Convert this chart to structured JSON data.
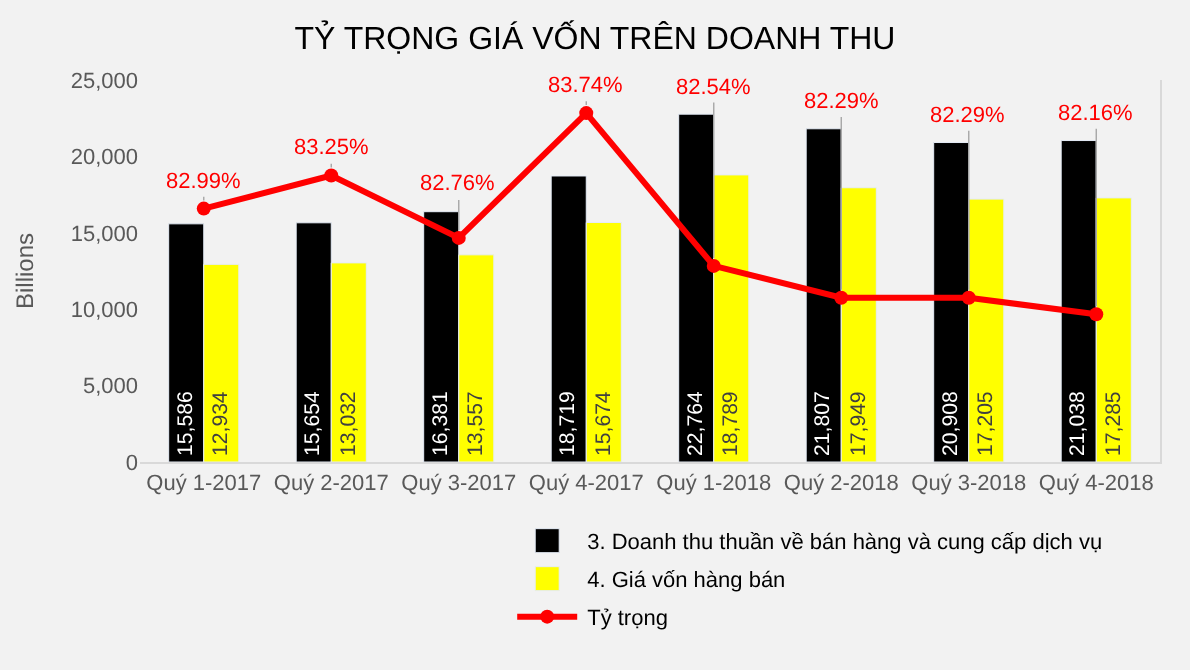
{
  "chart_data": {
    "type": "bar",
    "title": "TỶ TRỌNG GIÁ VỐN TRÊN DOANH THU",
    "ylabel": "Billions",
    "categories": [
      "Quý 1-2017",
      "Quý 2-2017",
      "Quý 3-2017",
      "Quý 4-2017",
      "Quý 1-2018",
      "Quý 2-2018",
      "Quý 3-2018",
      "Quý 4-2018"
    ],
    "series": [
      {
        "name": "3. Doanh thu thuần về bán hàng và cung cấp dịch vụ",
        "color": "#000000",
        "values": [
          15586,
          15654,
          16381,
          18719,
          22764,
          21807,
          20908,
          21038
        ],
        "value_labels": [
          "15,586",
          "15,654",
          "16,381",
          "18,719",
          "22,764",
          "21,807",
          "20,908",
          "21,038"
        ]
      },
      {
        "name": "4. Giá vốn hàng bán",
        "color": "#ffff00",
        "values": [
          12934,
          13032,
          13557,
          15674,
          18789,
          17949,
          17205,
          17285
        ],
        "value_labels": [
          "12,934",
          "13,032",
          "13,557",
          "15,674",
          "18,789",
          "17,949",
          "17,205",
          "17,285"
        ]
      },
      {
        "name": "Tỷ trọng",
        "type": "line",
        "axis": "y2",
        "color": "#ff0000",
        "values": [
          82.99,
          83.25,
          82.76,
          83.74,
          82.54,
          82.29,
          82.29,
          82.16
        ],
        "value_labels": [
          "82.99%",
          "83.25%",
          "82.76%",
          "83.74%",
          "82.54%",
          "82.29%",
          "82.29%",
          "82.16%"
        ]
      }
    ],
    "ylim": [
      0,
      25000
    ],
    "yticks": [
      {
        "value": 0,
        "label": "0"
      },
      {
        "value": 5000,
        "label": "5,000"
      },
      {
        "value": 10000,
        "label": "10,000"
      },
      {
        "value": 15000,
        "label": "15,000"
      },
      {
        "value": 20000,
        "label": "20,000"
      },
      {
        "value": 25000,
        "label": "25,000"
      }
    ],
    "y2lim": [
      81,
      84
    ],
    "grid": false,
    "legend": "bottom",
    "marker": "circle"
  }
}
